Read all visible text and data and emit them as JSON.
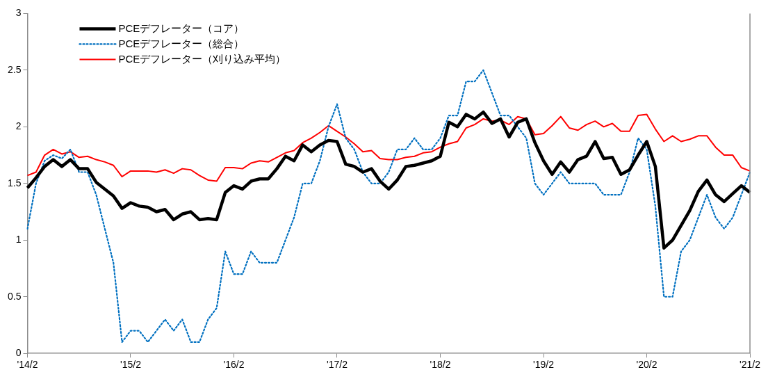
{
  "chart_data": {
    "type": "line",
    "categories": [
      "'14/2",
      null,
      null,
      null,
      null,
      null,
      null,
      null,
      null,
      null,
      null,
      null,
      "'15/2",
      null,
      null,
      null,
      null,
      null,
      null,
      null,
      null,
      null,
      null,
      null,
      "'16/2",
      null,
      null,
      null,
      null,
      null,
      null,
      null,
      null,
      null,
      null,
      null,
      "'17/2",
      null,
      null,
      null,
      null,
      null,
      null,
      null,
      null,
      null,
      null,
      null,
      "'18/2",
      null,
      null,
      null,
      null,
      null,
      null,
      null,
      null,
      null,
      null,
      null,
      "'19/2",
      null,
      null,
      null,
      null,
      null,
      null,
      null,
      null,
      null,
      null,
      null,
      "'20/2",
      null,
      null,
      null,
      null,
      null,
      null,
      null,
      null,
      null,
      null,
      null,
      "'21/2"
    ],
    "series": [
      {
        "name": "PCEデフレーター（コア）",
        "color": "#000000",
        "line_style": "solid",
        "values": [
          1.46,
          1.55,
          1.65,
          1.71,
          1.65,
          1.71,
          1.63,
          1.63,
          1.51,
          1.45,
          1.39,
          1.28,
          1.33,
          1.3,
          1.29,
          1.25,
          1.27,
          1.18,
          1.23,
          1.25,
          1.18,
          1.19,
          1.18,
          1.42,
          1.48,
          1.45,
          1.52,
          1.54,
          1.54,
          1.63,
          1.74,
          1.7,
          1.84,
          1.78,
          1.84,
          1.88,
          1.87,
          1.67,
          1.65,
          1.6,
          1.63,
          1.52,
          1.45,
          1.53,
          1.65,
          1.66,
          1.68,
          1.7,
          1.74,
          2.04,
          2.0,
          2.11,
          2.07,
          2.13,
          2.03,
          2.07,
          1.91,
          2.04,
          2.07,
          1.86,
          1.7,
          1.58,
          1.69,
          1.6,
          1.71,
          1.74,
          1.87,
          1.72,
          1.73,
          1.58,
          1.62,
          1.75,
          1.87,
          1.65,
          0.93,
          1.0,
          1.13,
          1.26,
          1.43,
          1.53,
          1.4,
          1.34,
          1.41,
          1.48,
          1.42
        ]
      },
      {
        "name": "PCEデフレーター（総合）",
        "color": "#0070c0",
        "line_style": "dotted",
        "values": [
          1.1,
          1.5,
          1.7,
          1.75,
          1.72,
          1.8,
          1.6,
          1.6,
          1.4,
          1.1,
          0.8,
          0.1,
          0.2,
          0.2,
          0.1,
          0.2,
          0.3,
          0.2,
          0.3,
          0.1,
          0.1,
          0.3,
          0.4,
          0.9,
          0.7,
          0.7,
          0.9,
          0.8,
          0.8,
          0.8,
          1.0,
          1.2,
          1.5,
          1.5,
          1.7,
          2.0,
          2.2,
          1.9,
          1.8,
          1.6,
          1.5,
          1.5,
          1.6,
          1.8,
          1.8,
          1.9,
          1.8,
          1.8,
          1.9,
          2.1,
          2.1,
          2.4,
          2.4,
          2.5,
          2.3,
          2.1,
          2.1,
          2.0,
          1.9,
          1.5,
          1.4,
          1.5,
          1.6,
          1.5,
          1.5,
          1.5,
          1.5,
          1.4,
          1.4,
          1.4,
          1.6,
          1.9,
          1.8,
          1.3,
          0.5,
          0.5,
          0.9,
          1.0,
          1.2,
          1.4,
          1.2,
          1.1,
          1.2,
          1.4,
          1.6
        ]
      },
      {
        "name": "PCEデフレーター（刈り込み平均）",
        "color": "#ff0000",
        "line_style": "solid",
        "values": [
          1.57,
          1.6,
          1.75,
          1.8,
          1.76,
          1.78,
          1.73,
          1.74,
          1.71,
          1.69,
          1.66,
          1.56,
          1.61,
          1.61,
          1.61,
          1.6,
          1.62,
          1.59,
          1.63,
          1.62,
          1.57,
          1.53,
          1.52,
          1.64,
          1.64,
          1.63,
          1.68,
          1.7,
          1.69,
          1.73,
          1.77,
          1.79,
          1.86,
          1.9,
          1.95,
          2.01,
          1.96,
          1.91,
          1.85,
          1.78,
          1.79,
          1.72,
          1.71,
          1.71,
          1.73,
          1.74,
          1.77,
          1.78,
          1.82,
          1.85,
          1.87,
          1.99,
          2.02,
          2.07,
          2.05,
          2.06,
          2.02,
          2.09,
          2.07,
          1.93,
          1.94,
          2.01,
          2.09,
          1.99,
          1.97,
          2.02,
          2.05,
          2.0,
          2.03,
          1.96,
          1.96,
          2.1,
          2.11,
          1.98,
          1.87,
          1.92,
          1.87,
          1.89,
          1.92,
          1.92,
          1.82,
          1.75,
          1.75,
          1.64,
          1.61
        ]
      }
    ],
    "ylim": [
      0,
      3
    ],
    "yticks": [
      0,
      0.5,
      1,
      1.5,
      2,
      2.5,
      3
    ],
    "grid": false,
    "legend": "top left",
    "marker": "none"
  }
}
